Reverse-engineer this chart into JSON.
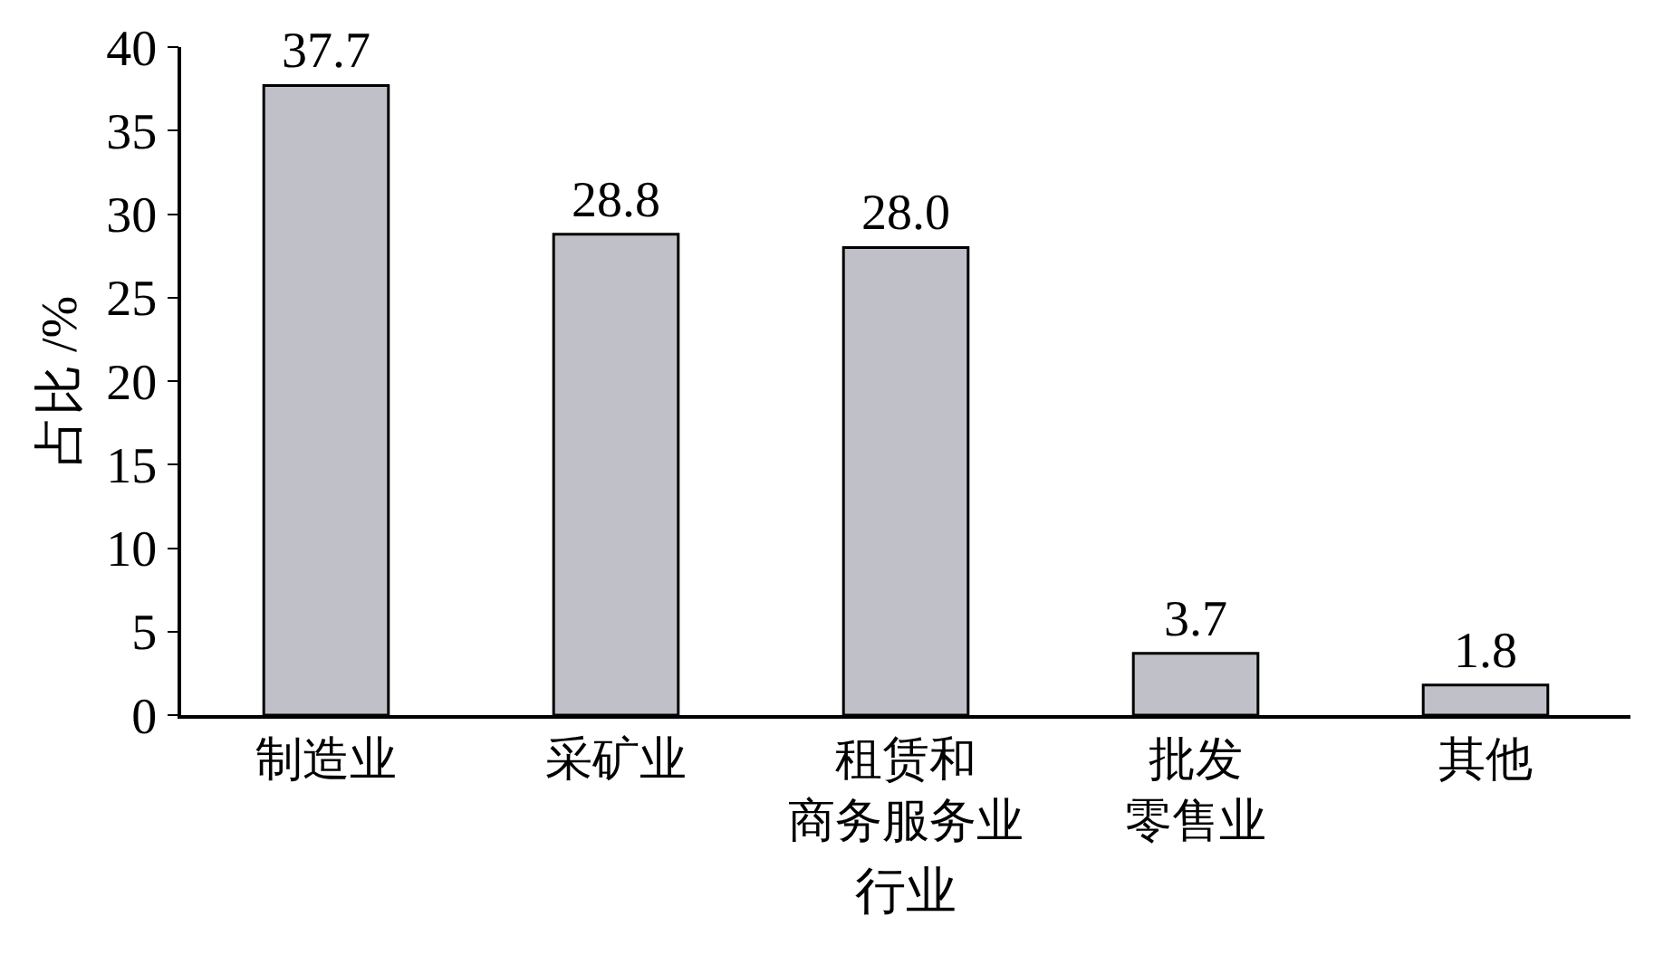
{
  "chart_data": {
    "type": "bar",
    "xlabel": "行业",
    "ylabel": "占比 /%",
    "categories": [
      "制造业",
      "采矿业",
      "租赁和商务服务业",
      "批发零售业",
      "其他"
    ],
    "values": [
      37.7,
      28.8,
      28.0,
      3.7,
      1.8
    ],
    "value_labels": [
      "37.7",
      "28.8",
      "28.0",
      "3.7",
      "1.8"
    ],
    "color": "#c0c0c8",
    "ylim": [
      0,
      40
    ],
    "yticks": [
      0,
      5,
      10,
      15,
      20,
      25,
      30,
      35,
      40
    ],
    "grid": false,
    "legend": false
  }
}
